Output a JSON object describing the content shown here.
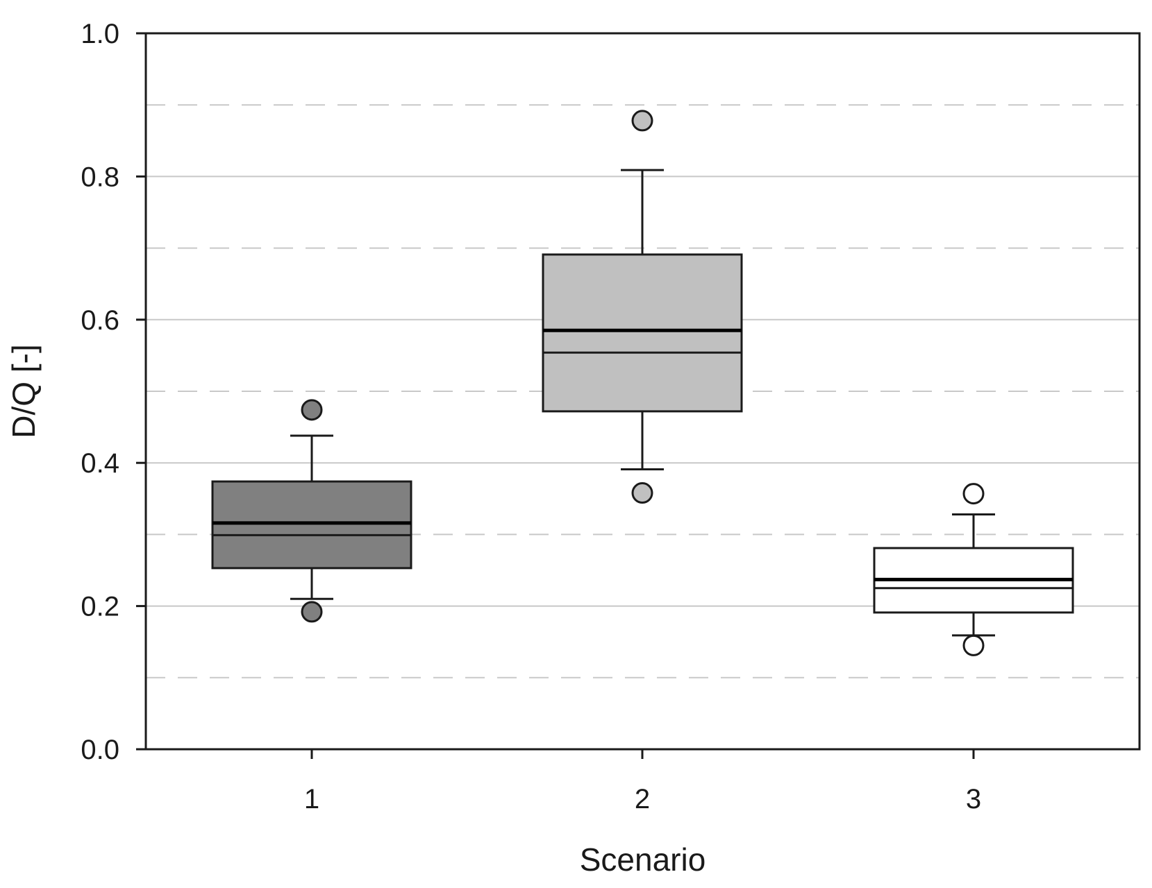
{
  "chart_data": {
    "type": "box",
    "xlabel": "Scenario",
    "ylabel": "D/Q [-]",
    "ylim": [
      0.0,
      1.0
    ],
    "yticks": [
      "0.0",
      "0.2",
      "0.4",
      "0.6",
      "0.8",
      "1.0"
    ],
    "grid": {
      "solid_at": [
        0.2,
        0.4,
        0.6,
        0.8
      ],
      "dashed_at": [
        0.1,
        0.3,
        0.5,
        0.7,
        0.9
      ],
      "color": "#c8c8c8"
    },
    "categories": [
      "1",
      "2",
      "3"
    ],
    "boxes": [
      {
        "category": "1",
        "whisker_low": 0.21,
        "q1": 0.253,
        "median": 0.299,
        "mean": 0.316,
        "q3": 0.374,
        "whisker_high": 0.438,
        "outliers": [
          0.192,
          0.474
        ],
        "color": "#808080"
      },
      {
        "category": "2",
        "whisker_low": 0.391,
        "q1": 0.472,
        "median": 0.554,
        "mean": 0.585,
        "q3": 0.691,
        "whisker_high": 0.809,
        "outliers": [
          0.358,
          0.878
        ],
        "color": "#c0c0c0"
      },
      {
        "category": "3",
        "whisker_low": 0.159,
        "q1": 0.191,
        "median": 0.225,
        "mean": 0.237,
        "q3": 0.281,
        "whisker_high": 0.328,
        "outliers": [
          0.145,
          0.357
        ],
        "color": "#ffffff"
      }
    ]
  }
}
